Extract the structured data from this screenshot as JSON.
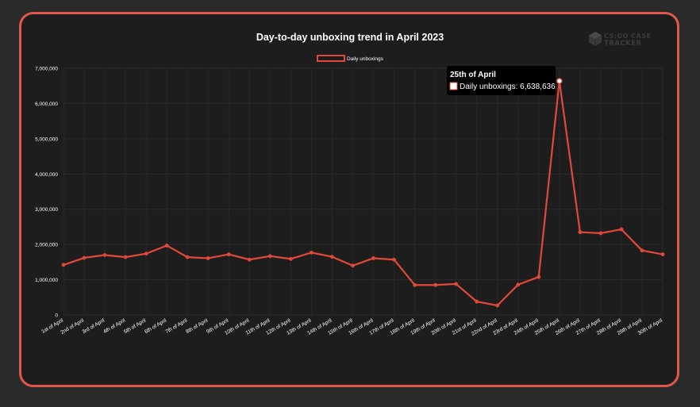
{
  "chart_data": {
    "type": "line",
    "title": "Day-to-day unboxing trend in April 2023",
    "xlabel": "",
    "ylabel": "",
    "ylim": [
      0,
      7000000
    ],
    "yticks": [
      {
        "value": 0,
        "label": "0"
      },
      {
        "value": 1000000,
        "label": "1,000,000"
      },
      {
        "value": 2000000,
        "label": "2,000,000"
      },
      {
        "value": 3000000,
        "label": "3,000,000"
      },
      {
        "value": 4000000,
        "label": "4,000,000"
      },
      {
        "value": 5000000,
        "label": "5,000,000"
      },
      {
        "value": 6000000,
        "label": "6,000,000"
      },
      {
        "value": 7000000,
        "label": "7,000,000"
      }
    ],
    "categories": [
      "1st of April",
      "2nd of April",
      "3rd of April",
      "4th of April",
      "5th of April",
      "6th of April",
      "7th of April",
      "8th of April",
      "9th of April",
      "10th of April",
      "11th of April",
      "12th of April",
      "13th of April",
      "14th of April",
      "15th of April",
      "16th of April",
      "17th of April",
      "18th of April",
      "19th of April",
      "20th of April",
      "21st of April",
      "22nd of April",
      "23rd of April",
      "24th of April",
      "25th of April",
      "26th of April",
      "27th of April",
      "28th of April",
      "29th of April",
      "30th of April"
    ],
    "series": [
      {
        "name": "Daily unboxings",
        "color": "#e0483c",
        "values": [
          1420000,
          1620000,
          1700000,
          1640000,
          1740000,
          1970000,
          1640000,
          1610000,
          1720000,
          1570000,
          1670000,
          1590000,
          1770000,
          1650000,
          1400000,
          1610000,
          1570000,
          850000,
          850000,
          880000,
          380000,
          270000,
          860000,
          1080000,
          6638636,
          2350000,
          2320000,
          2430000,
          1830000,
          1720000
        ]
      }
    ],
    "legend": "top-center",
    "grid": true,
    "tooltip": {
      "title": "25th of April",
      "label": "Daily unboxings: 6,638,636",
      "index": 24
    }
  },
  "brand": {
    "line1": "CS:GO CASE",
    "line2": "TRACKER"
  }
}
